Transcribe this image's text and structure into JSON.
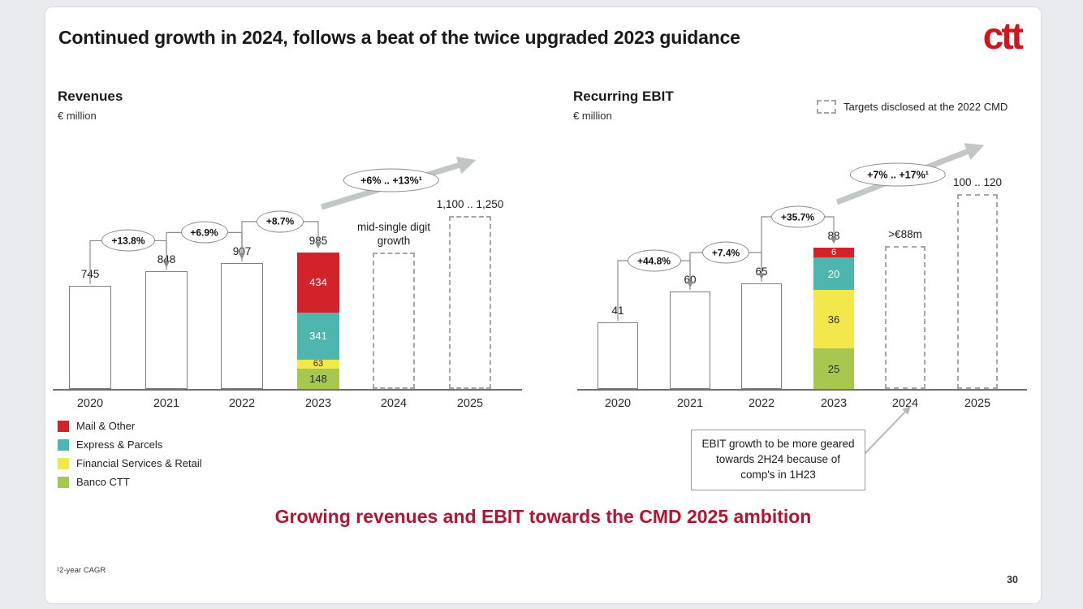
{
  "slide": {
    "title": "Continued growth in 2024, follows a beat of the twice upgraded 2023 guidance",
    "logo_text": "ctt",
    "message": "Growing revenues and EBIT towards the CMD 2025 ambition",
    "footnote": "¹2-year CAGR",
    "page_number": "30"
  },
  "colors": {
    "mail_other": "#d2232a",
    "express_parcels": "#4eb6ae",
    "financial_services": "#f2e84b",
    "banco_ctt": "#a8c750",
    "logo_red": "#d6121b",
    "message_red": "#b01631"
  },
  "legend": {
    "items": [
      {
        "label": "Mail & Other",
        "color": "#d2232a"
      },
      {
        "label": "Express & Parcels",
        "color": "#4eb6ae"
      },
      {
        "label": "Financial Services & Retail",
        "color": "#f2e84b"
      },
      {
        "label": "Banco CTT",
        "color": "#a8c750"
      }
    ]
  },
  "targets_legend_label": "Targets disclosed at the 2022 CMD",
  "callout_text": "EBIT growth to be more geared towards 2H24 because of comp's in 1H23",
  "chart_data": [
    {
      "type": "bar",
      "title": "Revenues",
      "unit_label": "€ million",
      "categories": [
        "2020",
        "2021",
        "2022",
        "2023",
        "2024",
        "2025"
      ],
      "ymax": 1250,
      "trend_label": "+6% .. +13%¹",
      "bars": [
        {
          "category": "2020",
          "style": "plain",
          "value": 745,
          "label": "745"
        },
        {
          "category": "2021",
          "style": "plain",
          "value": 848,
          "label": "848",
          "growth_from_prev": "+13.8%"
        },
        {
          "category": "2022",
          "style": "plain",
          "value": 907,
          "label": "907",
          "growth_from_prev": "+6.9%"
        },
        {
          "category": "2023",
          "style": "stacked",
          "value": 985,
          "label": "985",
          "growth_from_prev": "+8.7%",
          "segments": [
            {
              "name": "Mail & Other",
              "value": 434,
              "color": "#d2232a",
              "label_color": "#ffffff"
            },
            {
              "name": "Express & Parcels",
              "value": 341,
              "color": "#4eb6ae",
              "label_color": "#ffffff"
            },
            {
              "name": "Financial Services & Retail",
              "value": 63,
              "color": "#f2e84b",
              "label_color": "#2b2b2b"
            },
            {
              "name": "Banco CTT",
              "value": 148,
              "color": "#a8c750",
              "label_color": "#2b2b2b"
            }
          ]
        },
        {
          "category": "2024",
          "style": "target",
          "value": 985,
          "label": "mid-single digit growth"
        },
        {
          "category": "2025",
          "style": "target",
          "value": 1250,
          "label": "1,100 .. 1,250"
        }
      ]
    },
    {
      "type": "bar",
      "title": "Recurring EBIT",
      "unit_label": "€ million",
      "categories": [
        "2020",
        "2021",
        "2022",
        "2023",
        "2024",
        "2025"
      ],
      "ymax": 120,
      "trend_label": "+7% .. +17%¹",
      "bars": [
        {
          "category": "2020",
          "style": "plain",
          "value": 41,
          "label": "41"
        },
        {
          "category": "2021",
          "style": "plain",
          "value": 60,
          "label": "60",
          "growth_from_prev": "+44.8%"
        },
        {
          "category": "2022",
          "style": "plain",
          "value": 65,
          "label": "65",
          "growth_from_prev": "+7.4%"
        },
        {
          "category": "2023",
          "style": "stacked",
          "value": 88,
          "label": "88",
          "growth_from_prev": "+35.7%",
          "segments": [
            {
              "name": "Mail & Other",
              "value": 6,
              "color": "#d2232a",
              "label_color": "#ffffff"
            },
            {
              "name": "Express & Parcels",
              "value": 20,
              "color": "#4eb6ae",
              "label_color": "#ffffff"
            },
            {
              "name": "Financial Services & Retail",
              "value": 36,
              "color": "#f2e84b",
              "label_color": "#2b2b2b"
            },
            {
              "name": "Banco CTT",
              "value": 25,
              "color": "#a8c750",
              "label_color": "#2b2b2b"
            }
          ]
        },
        {
          "category": "2024",
          "style": "target",
          "value": 88,
          "label": ">€88m"
        },
        {
          "category": "2025",
          "style": "target",
          "value": 120,
          "label": "100 .. 120"
        }
      ]
    }
  ]
}
